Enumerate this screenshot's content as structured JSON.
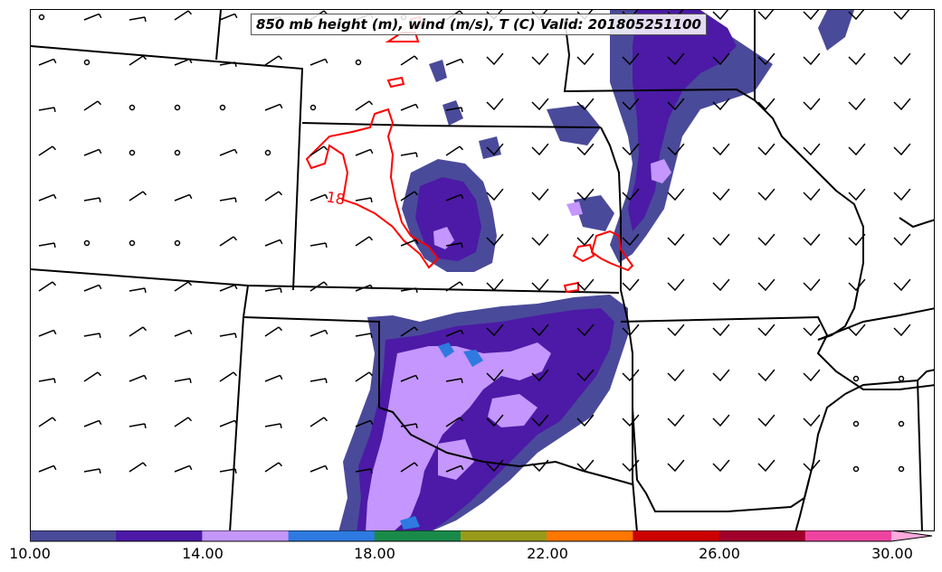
{
  "title": "850 mb height (m), wind (m/s), T (C) Valid: 201805251100",
  "contour_label": "18",
  "colorbar": {
    "min": 10,
    "max": 30,
    "ticks": [
      "10.00",
      "14.00",
      "18.00",
      "22.00",
      "26.00",
      "30.00"
    ],
    "colors": [
      "#4a4a9a",
      "#4c1aa6",
      "#c496fe",
      "#2e7ae0",
      "#1a8a4a",
      "#9a9a1a",
      "#ff7700",
      "#cc0000",
      "#a0002a",
      "#ee44a0"
    ],
    "extend_color": "#ffaadd"
  },
  "shading_colors": {
    "light": "#4a4a9a",
    "medium": "#4c1aa6",
    "strong": "#c496fe",
    "blue": "#2e7ae0"
  },
  "contour_color": "#ff0000",
  "border_color": "#000000"
}
